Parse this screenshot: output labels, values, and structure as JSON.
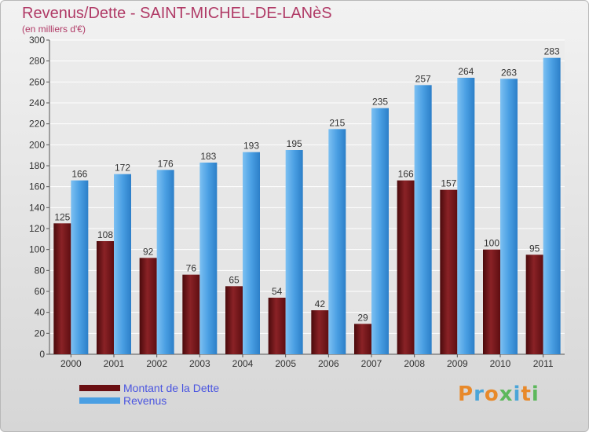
{
  "title": "Revenus/Dette - SAINT-MICHEL-DE-LANèS",
  "subtitle": "(en milliers d'€)",
  "logo_text": "Proxiti",
  "colors": {
    "dette": "#7a1518",
    "revenus": "#4a9fe3",
    "title": "#b03a66",
    "legend_text": "#4a55e0"
  },
  "chart_data": {
    "type": "bar",
    "categories": [
      "2000",
      "2001",
      "2002",
      "2003",
      "2004",
      "2005",
      "2006",
      "2007",
      "2008",
      "2009",
      "2010",
      "2011"
    ],
    "series": [
      {
        "name": "Montant de la Dette",
        "values": [
          125,
          108,
          92,
          76,
          65,
          54,
          42,
          29,
          166,
          157,
          100,
          95
        ]
      },
      {
        "name": "Revenus",
        "values": [
          166,
          172,
          176,
          183,
          193,
          195,
          215,
          235,
          257,
          264,
          263,
          283
        ]
      }
    ],
    "ylim": [
      0,
      300
    ],
    "yticks": [
      0,
      20,
      40,
      60,
      80,
      100,
      120,
      140,
      160,
      180,
      200,
      220,
      240,
      260,
      280,
      300
    ],
    "grid": true,
    "legend_position": "bottom-left"
  }
}
